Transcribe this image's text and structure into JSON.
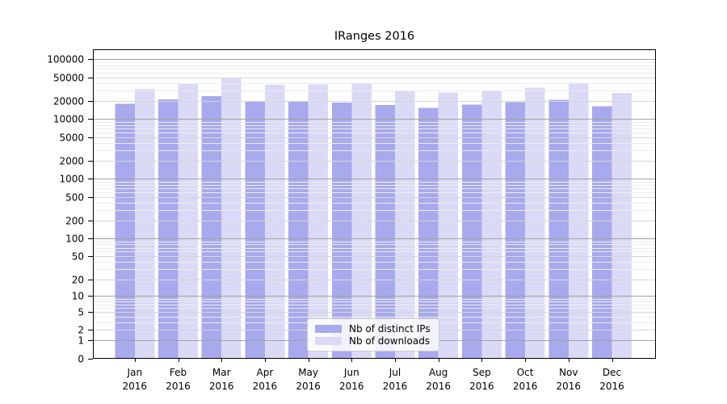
{
  "chart_data": {
    "type": "bar",
    "title": "IRanges 2016",
    "categories": [
      "Jan",
      "Feb",
      "Mar",
      "Apr",
      "May",
      "Jun",
      "Jul",
      "Aug",
      "Sep",
      "Oct",
      "Nov",
      "Dec"
    ],
    "x_tick_year_line": "2016",
    "series": [
      {
        "name": "Nb of distinct IPs",
        "color": "#a9a9ee",
        "values": [
          18200,
          21400,
          24300,
          19800,
          20100,
          18900,
          17200,
          15400,
          17600,
          19100,
          21200,
          16400
        ]
      },
      {
        "name": "Nb of downloads",
        "color": "#dadaf7",
        "values": [
          32000,
          38700,
          48500,
          37500,
          38400,
          40300,
          30000,
          28100,
          30200,
          33900,
          40300,
          27500
        ]
      }
    ],
    "y_axis": {
      "scale": "log1p",
      "ticks": [
        0,
        1,
        2,
        5,
        10,
        20,
        50,
        100,
        200,
        500,
        1000,
        2000,
        5000,
        10000,
        20000,
        50000,
        100000
      ]
    },
    "grid": {
      "on": true,
      "major_color": "#a2a2a2",
      "mid_color": "#d6d6d6",
      "minor_color": "#ececec"
    },
    "legend": {
      "position": "lower center"
    },
    "axis_color": "#000000",
    "background": "#ffffff"
  }
}
